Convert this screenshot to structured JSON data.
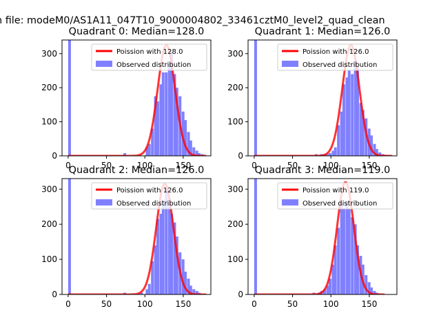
{
  "figure_title": "n file: modeM0/AS1A11_047T10_9000004802_33461cztM0_level2_quad_clean",
  "colors": {
    "fit": "#ff0000",
    "hist": "#8080ff",
    "axis": "#000000",
    "legend_border": "#cccccc"
  },
  "chart_data": [
    {
      "type": "bar",
      "title": "Quadrant 0: Median=128.0",
      "xlim": [
        -8,
        186
      ],
      "ylim": [
        0,
        340
      ],
      "xticks": [
        0,
        50,
        100,
        150
      ],
      "yticks": [
        0,
        100,
        200,
        300
      ],
      "legend": [
        "Poission with 128.0",
        "Observed distribution"
      ],
      "legend_position": "top-right",
      "series": [
        {
          "name": "Poission with 128.0",
          "kind": "line",
          "mean": 128.0,
          "peak": 325,
          "sd": 11.3,
          "x_range": [
            0,
            180
          ]
        },
        {
          "name": "Observed distribution",
          "kind": "hist",
          "bin_width": 3.6,
          "bins_x": [
            0,
            72,
            101,
            104,
            108,
            112,
            115,
            119,
            122,
            126,
            130,
            133,
            137,
            140,
            144,
            148,
            151,
            155,
            158,
            162,
            166,
            169,
            173,
            176
          ],
          "values": [
            340,
            8,
            25,
            35,
            80,
            175,
            160,
            210,
            245,
            245,
            270,
            305,
            240,
            200,
            175,
            130,
            105,
            70,
            45,
            25,
            15,
            8,
            5,
            2
          ]
        }
      ]
    },
    {
      "type": "bar",
      "title": "Quadrant 1: Median=126.0",
      "xlim": [
        -8,
        186
      ],
      "ylim": [
        0,
        340
      ],
      "xticks": [
        0,
        50,
        100,
        150
      ],
      "yticks": [
        0,
        100,
        200,
        300
      ],
      "legend": [
        "Poission with 126.0",
        "Observed distribution"
      ],
      "legend_position": "top-right",
      "series": [
        {
          "name": "Poission with 126.0",
          "kind": "line",
          "mean": 126.0,
          "peak": 325,
          "sd": 11.2,
          "x_range": [
            0,
            180
          ]
        },
        {
          "name": "Observed distribution",
          "kind": "hist",
          "bin_width": 3.6,
          "bins_x": [
            0,
            79,
            86,
            90,
            94,
            97,
            101,
            104,
            108,
            112,
            115,
            119,
            122,
            126,
            130,
            133,
            137,
            140,
            144,
            148,
            151,
            155,
            158,
            162,
            166,
            169,
            173
          ],
          "values": [
            340,
            5,
            5,
            5,
            5,
            8,
            15,
            25,
            90,
            130,
            210,
            230,
            250,
            240,
            280,
            260,
            155,
            135,
            110,
            80,
            60,
            35,
            20,
            10,
            5,
            3,
            2
          ]
        }
      ]
    },
    {
      "type": "bar",
      "title": "Quadrant 2: Median=126.0",
      "xlim": [
        -8,
        186
      ],
      "ylim": [
        0,
        330
      ],
      "xticks": [
        0,
        50,
        100,
        150
      ],
      "yticks": [
        0,
        100,
        200,
        300
      ],
      "legend": [
        "Poission with 126.0",
        "Observed distribution"
      ],
      "legend_position": "top-right",
      "series": [
        {
          "name": "Poission with 126.0",
          "kind": "line",
          "mean": 126.0,
          "peak": 315,
          "sd": 11.2,
          "x_range": [
            0,
            180
          ]
        },
        {
          "name": "Observed distribution",
          "kind": "hist",
          "bin_width": 3.6,
          "bins_x": [
            0,
            72,
            94,
            101,
            104,
            108,
            112,
            115,
            119,
            122,
            126,
            130,
            133,
            137,
            140,
            144,
            148,
            151,
            155,
            158,
            162,
            166,
            169,
            173
          ],
          "values": [
            330,
            5,
            5,
            15,
            30,
            95,
            140,
            215,
            230,
            270,
            300,
            260,
            230,
            205,
            165,
            120,
            100,
            65,
            45,
            25,
            15,
            10,
            5,
            2
          ]
        }
      ]
    },
    {
      "type": "bar",
      "title": "Quadrant 3: Median=119.0",
      "xlim": [
        -8,
        186
      ],
      "ylim": [
        0,
        330
      ],
      "xticks": [
        0,
        50,
        100,
        150
      ],
      "yticks": [
        0,
        100,
        200,
        300
      ],
      "legend": [
        "Poission with 119.0",
        "Observed distribution"
      ],
      "legend_position": "top-right",
      "series": [
        {
          "name": "Poission with 119.0",
          "kind": "line",
          "mean": 119.0,
          "peak": 320,
          "sd": 10.9,
          "x_range": [
            0,
            170
          ]
        },
        {
          "name": "Observed distribution",
          "kind": "hist",
          "bin_width": 3.6,
          "bins_x": [
            0,
            76,
            83,
            86,
            90,
            94,
            97,
            101,
            104,
            108,
            112,
            115,
            119,
            122,
            126,
            130,
            133,
            137,
            140,
            144,
            148,
            151,
            155,
            158,
            162
          ],
          "values": [
            330,
            5,
            5,
            10,
            15,
            25,
            45,
            85,
            140,
            190,
            260,
            245,
            265,
            245,
            220,
            200,
            140,
            110,
            85,
            55,
            35,
            20,
            10,
            5,
            2
          ]
        }
      ]
    }
  ]
}
